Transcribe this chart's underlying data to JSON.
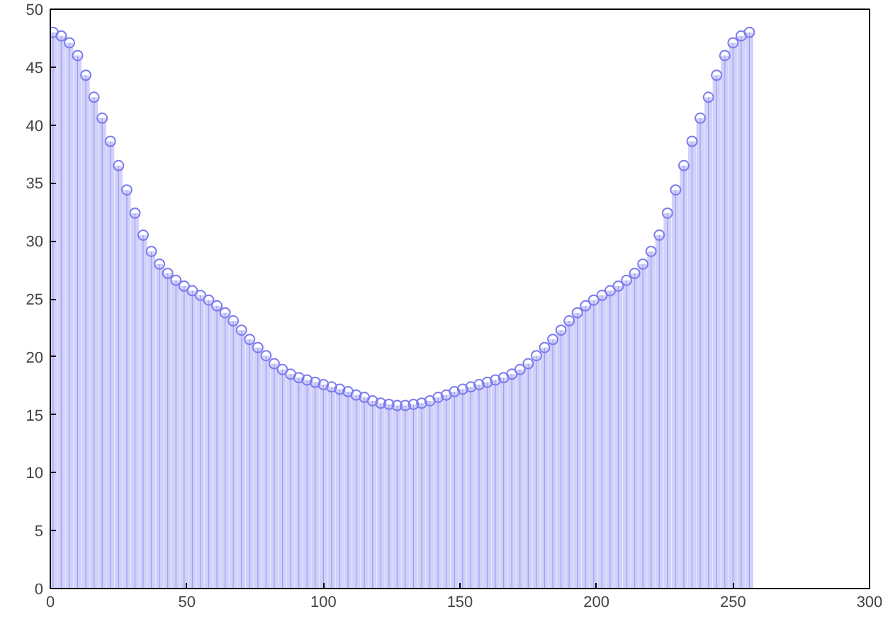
{
  "chart_data": {
    "type": "lollipop",
    "marker": "circle",
    "grid": false,
    "xlim": [
      0,
      300
    ],
    "ylim": [
      0,
      50
    ],
    "xticks": [
      0,
      50,
      100,
      150,
      200,
      250,
      300
    ],
    "yticks": [
      0,
      5,
      10,
      15,
      20,
      25,
      30,
      35,
      40,
      45,
      50
    ],
    "series": [
      {
        "color": "#7b7bef",
        "x": [
          1,
          4,
          7,
          10,
          13,
          16,
          19,
          22,
          25,
          28,
          31,
          34,
          37,
          40,
          43,
          46,
          49,
          52,
          55,
          58,
          61,
          64,
          67,
          70,
          73,
          76,
          79,
          82,
          85,
          88,
          91,
          94,
          97,
          100,
          103,
          106,
          109,
          112,
          115,
          118,
          121,
          124,
          127,
          130,
          133,
          136,
          139,
          142,
          145,
          148,
          151,
          154,
          157,
          160,
          163,
          166,
          169,
          172,
          175,
          178,
          181,
          184,
          187,
          190,
          193,
          196,
          199,
          202,
          205,
          208,
          211,
          214,
          217,
          220,
          223,
          226,
          229,
          232,
          235,
          238,
          241,
          244,
          247,
          250,
          253,
          256
        ],
        "values": [
          48.0,
          47.7,
          47.1,
          46.0,
          44.3,
          42.4,
          40.6,
          38.6,
          36.5,
          34.4,
          32.4,
          30.5,
          29.1,
          28.0,
          27.2,
          26.6,
          26.1,
          25.7,
          25.3,
          24.9,
          24.4,
          23.8,
          23.1,
          22.3,
          21.5,
          20.8,
          20.1,
          19.4,
          18.9,
          18.5,
          18.2,
          18.0,
          17.8,
          17.6,
          17.4,
          17.2,
          17.0,
          16.7,
          16.5,
          16.2,
          16.0,
          15.9,
          15.8,
          15.8,
          15.9,
          16.0,
          16.2,
          16.5,
          16.7,
          17.0,
          17.2,
          17.4,
          17.6,
          17.8,
          18.0,
          18.2,
          18.5,
          18.9,
          19.4,
          20.1,
          20.8,
          21.5,
          22.3,
          23.1,
          23.8,
          24.4,
          24.9,
          25.3,
          25.7,
          26.1,
          26.6,
          27.2,
          28.0,
          29.1,
          30.5,
          32.4,
          34.4,
          36.5,
          38.6,
          40.6,
          42.4,
          44.3,
          46.0,
          47.1,
          47.7,
          48.0
        ]
      }
    ]
  }
}
